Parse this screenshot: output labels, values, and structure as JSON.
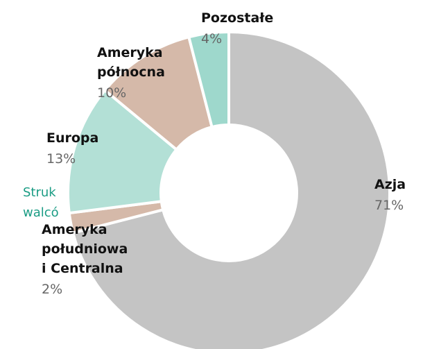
{
  "chart_data": {
    "type": "pie",
    "categories": [
      [
        "Azja"
      ],
      [
        "Ameryka",
        "południowa",
        "i Centralna"
      ],
      [
        "Europa"
      ],
      [
        "Ameryka",
        "północna"
      ],
      [
        "Pozostałe"
      ]
    ],
    "values": [
      71,
      2,
      13,
      10,
      4
    ],
    "value_labels": [
      "71%",
      "2%",
      "13%",
      "10%",
      "4%"
    ],
    "colors": [
      "#c4c4c4",
      "#d5b9a9",
      "#b3e0d6",
      "#d5b9a9",
      "#9ed8cc"
    ],
    "background_text": [
      "Struk",
      "walcó"
    ]
  }
}
